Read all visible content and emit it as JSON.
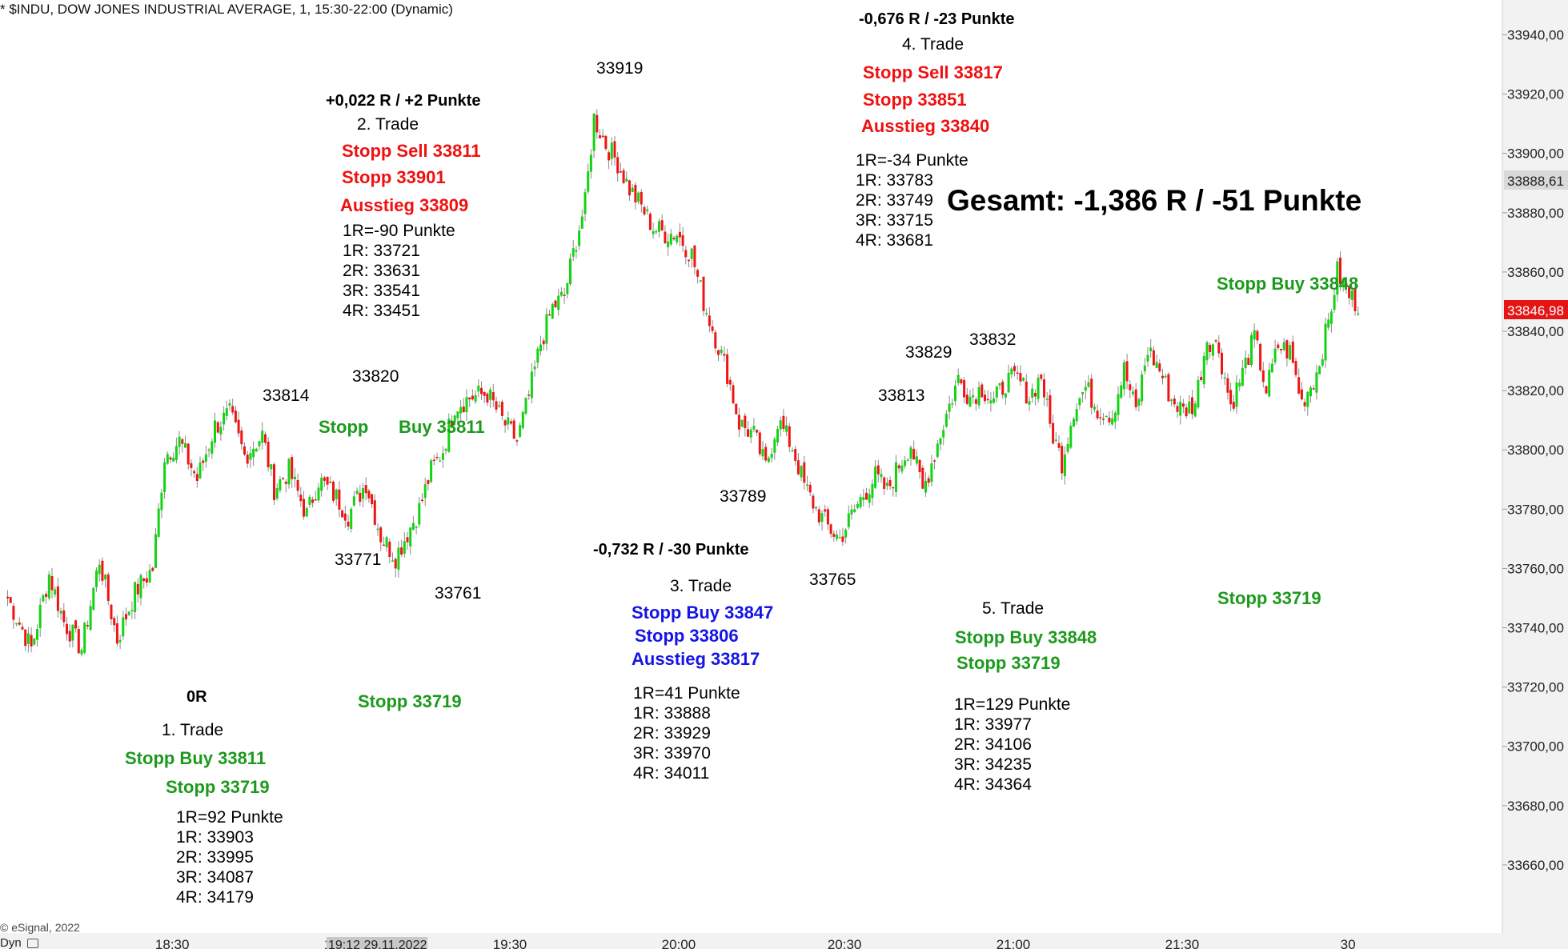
{
  "header": {
    "title": "* $INDU, DOW JONES INDUSTRIAL AVERAGE, 1, 15:30-22:00 (Dynamic)"
  },
  "footer": {
    "copyright": "© eSignal, 2022",
    "dyn_label": "Dyn",
    "time_badge": "19:12 29.11.2022"
  },
  "colors": {
    "up": "#13d413",
    "down": "#f01414",
    "annotation_green": "#1c9a1c",
    "annotation_red": "#f01010",
    "annotation_blue": "#1414e6",
    "last_price_bg": "#e51515",
    "crosshair_price_bg": "#d9d9d9"
  },
  "price_labels": {
    "crosshair": "33888,61",
    "last": "33846,98"
  },
  "annotations": {
    "peak_labels": [
      "33814",
      "33820",
      "33919",
      "33813",
      "33829",
      "33832"
    ],
    "trough_labels": [
      "33771",
      "33761",
      "33789",
      "33765"
    ],
    "stop_buy_top": {
      "part1": "Stopp",
      "part2": "Buy 33811"
    },
    "stop_33719_a": "Stopp 33719",
    "stop_33719_b": "Stopp 33719",
    "stop_buy_right": "Stopp Buy 33848",
    "total": "Gesamt: -1,386 R / -51 Punkte"
  },
  "trades": [
    {
      "result": "0R",
      "title": "1. Trade",
      "orders": [
        "Stopp Buy 33811",
        "Stopp 33719"
      ],
      "levels": [
        "1R=92 Punkte",
        "1R: 33903",
        "2R: 33995",
        "3R: 34087",
        "4R: 34179"
      ]
    },
    {
      "result": "+0,022 R / +2 Punkte",
      "title": "2. Trade",
      "orders": [
        "Stopp Sell 33811",
        "Stopp 33901",
        "Ausstieg 33809"
      ],
      "levels": [
        "1R=-90 Punkte",
        "1R: 33721",
        "2R: 33631",
        "3R: 33541",
        "4R: 33451"
      ]
    },
    {
      "result": "-0,732 R / -30 Punkte",
      "title": "3. Trade",
      "orders": [
        "Stopp Buy 33847",
        "Stopp 33806",
        "Ausstieg 33817"
      ],
      "levels": [
        "1R=41 Punkte",
        "1R: 33888",
        "2R: 33929",
        "3R: 33970",
        "4R: 34011"
      ]
    },
    {
      "result": "-0,676 R / -23 Punkte",
      "title": "4. Trade",
      "orders": [
        "Stopp Sell 33817",
        "Stopp 33851",
        "Ausstieg 33840"
      ],
      "levels": [
        "1R=-34 Punkte",
        "1R: 33783",
        "2R: 33749",
        "3R: 33715",
        "4R: 33681"
      ]
    },
    {
      "result": "",
      "title": "5. Trade",
      "orders": [
        "Stopp Buy 33848",
        "Stopp 33719"
      ],
      "levels": [
        "1R=129 Punkte",
        "1R: 33977",
        "2R: 34106",
        "3R: 34235",
        "4R: 34364"
      ]
    }
  ],
  "chart_data": {
    "type": "candlestick",
    "title": "* $INDU, DOW JONES INDUSTRIAL AVERAGE, 1, 15:30-22:00 (Dynamic)",
    "ylim": [
      33650,
      33945
    ],
    "y_ticks": [
      33940,
      33920,
      33900,
      33880,
      33860,
      33840,
      33820,
      33800,
      33780,
      33760,
      33740,
      33720,
      33700,
      33680,
      33660
    ],
    "y_tick_labels": [
      "33940,00",
      "33920,00",
      "33900,00",
      "33880,00",
      "33860,00",
      "33840,00",
      "33820,00",
      "33800,00",
      "33780,00",
      "33760,00",
      "33740,00",
      "33720,00",
      "33700,00",
      "33680,00",
      "33660,00"
    ],
    "x_ticks": [
      "18:30",
      "19:00",
      "19:30",
      "20:00",
      "20:30",
      "21:00",
      "21:30",
      "30"
    ],
    "anchors": [
      [
        0,
        33750
      ],
      [
        8,
        33733
      ],
      [
        14,
        33758
      ],
      [
        19,
        33742
      ],
      [
        25,
        33733
      ],
      [
        31,
        33763
      ],
      [
        37,
        33736
      ],
      [
        43,
        33752
      ],
      [
        49,
        33760
      ],
      [
        53,
        33798
      ],
      [
        58,
        33803
      ],
      [
        64,
        33790
      ],
      [
        70,
        33808
      ],
      [
        75,
        33812
      ],
      [
        80,
        33798
      ],
      [
        86,
        33805
      ],
      [
        90,
        33787
      ],
      [
        95,
        33793
      ],
      [
        101,
        33778
      ],
      [
        105,
        33790
      ],
      [
        111,
        33784
      ],
      [
        115,
        33778
      ],
      [
        121,
        33789
      ],
      [
        126,
        33771
      ],
      [
        131,
        33764
      ],
      [
        135,
        33772
      ],
      [
        139,
        33780
      ],
      [
        143,
        33793
      ],
      [
        147,
        33800
      ],
      [
        151,
        33815
      ],
      [
        157,
        33818
      ],
      [
        162,
        33819
      ],
      [
        167,
        33810
      ],
      [
        172,
        33803
      ],
      [
        176,
        33818
      ],
      [
        180,
        33836
      ],
      [
        184,
        33848
      ],
      [
        188,
        33852
      ],
      [
        192,
        33871
      ],
      [
        195,
        33883
      ],
      [
        198,
        33912
      ],
      [
        202,
        33903
      ],
      [
        206,
        33897
      ],
      [
        210,
        33888
      ],
      [
        214,
        33882
      ],
      [
        218,
        33875
      ],
      [
        222,
        33873
      ],
      [
        226,
        33873
      ],
      [
        231,
        33866
      ],
      [
        235,
        33850
      ],
      [
        239,
        33838
      ],
      [
        243,
        33826
      ],
      [
        247,
        33809
      ],
      [
        252,
        33805
      ],
      [
        256,
        33794
      ],
      [
        260,
        33810
      ],
      [
        265,
        33801
      ],
      [
        269,
        33788
      ],
      [
        273,
        33780
      ],
      [
        277,
        33774
      ],
      [
        281,
        33770
      ],
      [
        285,
        33778
      ],
      [
        289,
        33785
      ],
      [
        293,
        33791
      ],
      [
        297,
        33786
      ],
      [
        301,
        33795
      ],
      [
        305,
        33802
      ],
      [
        309,
        33786
      ],
      [
        313,
        33799
      ],
      [
        317,
        33812
      ],
      [
        321,
        33824
      ],
      [
        325,
        33818
      ],
      [
        329,
        33821
      ],
      [
        333,
        33816
      ],
      [
        337,
        33823
      ],
      [
        341,
        33824
      ],
      [
        345,
        33818
      ],
      [
        349,
        33825
      ],
      [
        352,
        33808
      ],
      [
        356,
        33796
      ],
      [
        360,
        33814
      ],
      [
        364,
        33821
      ],
      [
        368,
        33814
      ],
      [
        373,
        33812
      ],
      [
        377,
        33827
      ],
      [
        381,
        33813
      ],
      [
        385,
        33834
      ],
      [
        389,
        33827
      ],
      [
        393,
        33817
      ],
      [
        397,
        33813
      ],
      [
        401,
        33816
      ],
      [
        405,
        33838
      ],
      [
        409,
        33834
      ],
      [
        413,
        33815
      ],
      [
        417,
        33826
      ],
      [
        421,
        33838
      ],
      [
        425,
        33820
      ],
      [
        429,
        33835
      ],
      [
        433,
        33833
      ],
      [
        437,
        33816
      ],
      [
        442,
        33826
      ],
      [
        446,
        33843
      ],
      [
        449,
        33860
      ],
      [
        453,
        33852
      ],
      [
        456,
        33849
      ]
    ]
  }
}
